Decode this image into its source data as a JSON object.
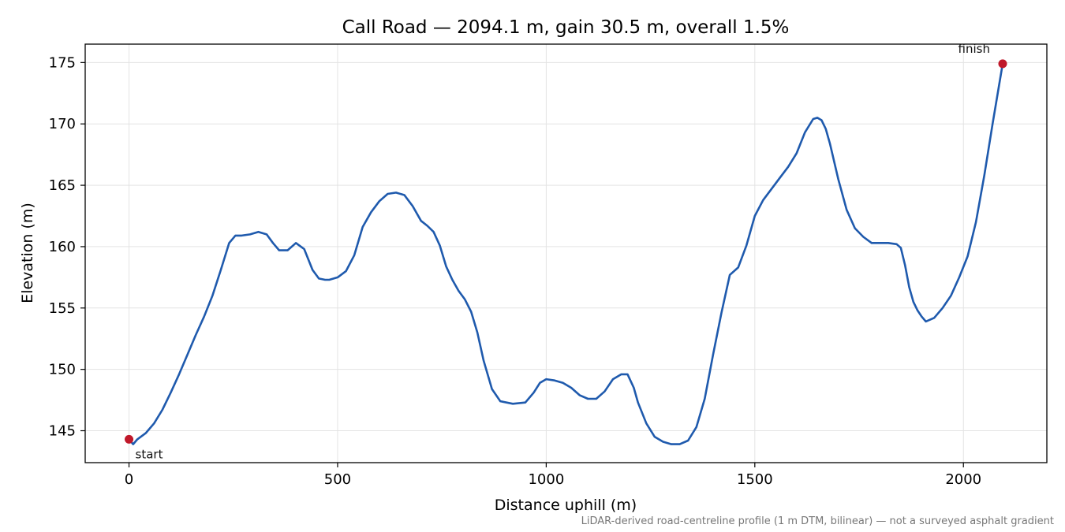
{
  "chart_data": {
    "type": "line",
    "title": "Call Road — 2094.1 m, gain 30.5 m, overall 1.5%",
    "xlabel": "Distance uphill (m)",
    "ylabel": "Elevation (m)",
    "xlim": [
      -105,
      2200
    ],
    "ylim": [
      142.4,
      176.5
    ],
    "xticks": [
      0,
      500,
      1000,
      1500,
      2000
    ],
    "yticks": [
      145,
      150,
      155,
      160,
      165,
      170,
      175
    ],
    "grid": true,
    "line_color": "#1f5aad",
    "marker_color": "#c0182a",
    "series": [
      {
        "x": [
          0,
          10,
          20,
          40,
          60,
          80,
          100,
          120,
          140,
          160,
          180,
          200,
          220,
          240,
          255,
          270,
          290,
          310,
          330,
          345,
          360,
          380,
          400,
          420,
          440,
          455,
          470,
          480,
          500,
          520,
          540,
          560,
          580,
          600,
          620,
          640,
          660,
          680,
          700,
          715,
          730,
          745,
          760,
          775,
          790,
          805,
          820,
          835,
          850,
          870,
          890,
          920,
          950,
          970,
          985,
          1000,
          1020,
          1040,
          1060,
          1080,
          1100,
          1120,
          1140,
          1160,
          1180,
          1195,
          1210,
          1220,
          1240,
          1260,
          1280,
          1300,
          1320,
          1340,
          1360,
          1380,
          1400,
          1420,
          1440,
          1460,
          1480,
          1500,
          1520,
          1540,
          1560,
          1580,
          1600,
          1620,
          1640,
          1650,
          1660,
          1670,
          1680,
          1700,
          1720,
          1740,
          1760,
          1780,
          1800,
          1820,
          1840,
          1850,
          1860,
          1870,
          1880,
          1890,
          1900,
          1910,
          1930,
          1950,
          1970,
          1990,
          2010,
          2030,
          2050,
          2070,
          2094.1
        ],
        "y": [
          144.3,
          143.9,
          144.3,
          144.8,
          145.6,
          146.7,
          148.1,
          149.6,
          151.2,
          152.8,
          154.3,
          156.0,
          158.1,
          160.3,
          160.9,
          160.9,
          161.0,
          161.2,
          161.0,
          160.3,
          159.7,
          159.7,
          160.3,
          159.8,
          158.1,
          157.4,
          157.3,
          157.3,
          157.5,
          158.0,
          159.3,
          161.6,
          162.8,
          163.7,
          164.3,
          164.4,
          164.2,
          163.3,
          162.1,
          161.7,
          161.2,
          160.1,
          158.4,
          157.3,
          156.4,
          155.7,
          154.7,
          153.0,
          150.7,
          148.4,
          147.4,
          147.2,
          147.3,
          148.1,
          148.9,
          149.2,
          149.1,
          148.9,
          148.5,
          147.9,
          147.6,
          147.6,
          148.2,
          149.2,
          149.6,
          149.6,
          148.5,
          147.3,
          145.6,
          144.5,
          144.1,
          143.9,
          143.9,
          144.2,
          145.3,
          147.6,
          151.2,
          154.6,
          157.7,
          158.3,
          160.1,
          162.5,
          163.8,
          164.7,
          165.6,
          166.5,
          167.6,
          169.3,
          170.4,
          170.5,
          170.3,
          169.6,
          168.4,
          165.5,
          163.0,
          161.5,
          160.8,
          160.3,
          160.3,
          160.3,
          160.2,
          159.9,
          158.5,
          156.7,
          155.5,
          154.8,
          154.3,
          153.9,
          154.2,
          155.0,
          156.0,
          157.5,
          159.2,
          162.0,
          165.8,
          170.0,
          174.9
        ]
      }
    ],
    "annotations": [
      {
        "text": "start",
        "x": 0,
        "y": 144.3
      },
      {
        "text": "finish",
        "x": 2094.1,
        "y": 174.9
      }
    ],
    "footnote": "LiDAR-derived road-centreline profile (1 m DTM, bilinear) — not a surveyed asphalt gradient"
  }
}
